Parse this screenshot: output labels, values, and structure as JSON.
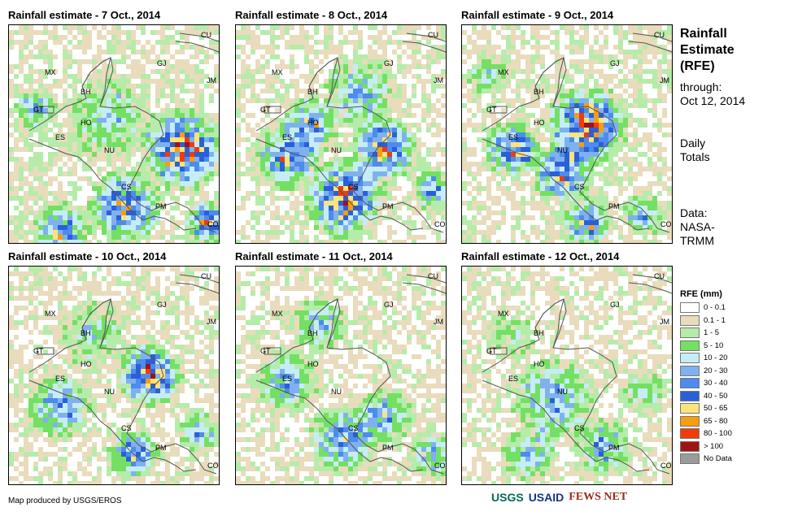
{
  "panels": [
    {
      "title": "Rainfall estimate - 7 Oct., 2014"
    },
    {
      "title": "Rainfall estimate - 8 Oct., 2014"
    },
    {
      "title": "Rainfall estimate - 9 Oct., 2014"
    },
    {
      "title": "Rainfall estimate - 10 Oct., 2014"
    },
    {
      "title": "Rainfall estimate - 11 Oct., 2014"
    },
    {
      "title": "Rainfall estimate - 12 Oct., 2014"
    }
  ],
  "country_labels": [
    "CU",
    "GJ",
    "JM",
    "MX",
    "BH",
    "GT",
    "HO",
    "ES",
    "NU",
    "CS",
    "PM",
    "CO"
  ],
  "sidebar": {
    "title_line1": "Rainfall",
    "title_line2": "Estimate",
    "title_line3": "(RFE)",
    "through": "through:",
    "date": "Oct 12, 2014",
    "daily1": "Daily",
    "daily2": "Totals",
    "data1": "Data:",
    "data2": "NASA-",
    "data3": "TRMM"
  },
  "legend": {
    "title": "RFE (mm)",
    "items": [
      {
        "label": "0 - 0.1",
        "color": "#ffffff"
      },
      {
        "label": "0.1 - 1",
        "color": "#e9dcbc"
      },
      {
        "label": "1 - 5",
        "color": "#b5ecaa"
      },
      {
        "label": "5 - 10",
        "color": "#74e063"
      },
      {
        "label": "10 - 20",
        "color": "#c6ecf6"
      },
      {
        "label": "20 - 30",
        "color": "#7fb1ef"
      },
      {
        "label": "30 - 40",
        "color": "#4d8bed"
      },
      {
        "label": "40 - 50",
        "color": "#2960d8"
      },
      {
        "label": "50 - 65",
        "color": "#fde37a"
      },
      {
        "label": "65 - 80",
        "color": "#f79d10"
      },
      {
        "label": "80 - 100",
        "color": "#f03b0a"
      },
      {
        "label": "> 100",
        "color": "#a11312"
      },
      {
        "label": "No Data",
        "color": "#9b9b9b"
      }
    ]
  },
  "credit": "Map produced by USGS/EROS",
  "logos": {
    "usgs": "USGS",
    "usaid": "USAID",
    "fewsnet": "FEWS NET"
  }
}
